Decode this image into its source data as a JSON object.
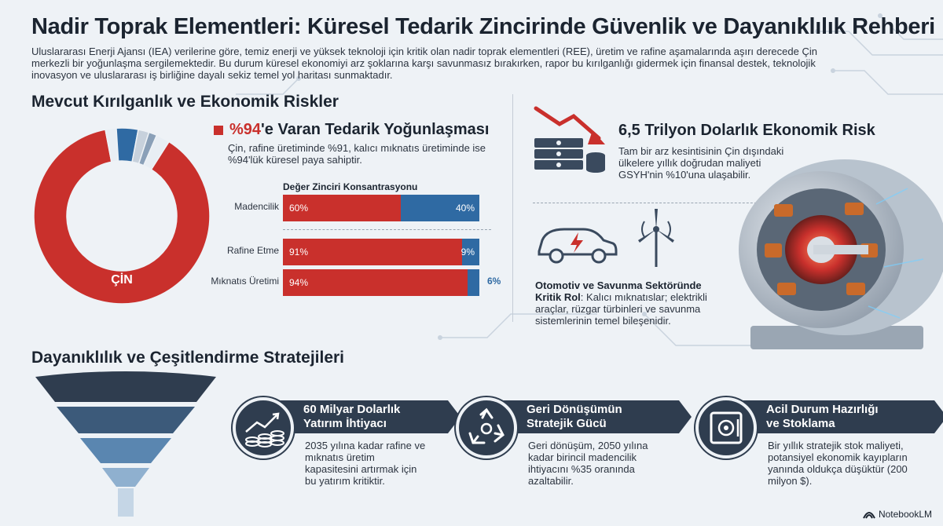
{
  "title": "Nadir Toprak Elementleri: Küresel Tedarik Zincirinde Güvenlik ve Dayanıklılık Rehberi",
  "intro": "Uluslararası Enerji Ajansı (IEA) verilerine göre, temiz enerji ve yüksek teknoloji için kritik olan nadir toprak elementleri (REE), üretim ve rafine aşamalarında aşırı derecede Çin merkezli bir yoğunlaşma sergilemektedir. Bu durum küresel ekonomiyi arz şoklarına karşı savunmasız bırakırken, rapor bu kırılganlığı gidermek için finansal destek, teknolojik inovasyon ve uluslararası iş birliğine dayalı sekiz temel yol haritası sunmaktadır.",
  "risks_section": {
    "title": "Mevcut Kırılganlık ve Ekonomik Riskler",
    "donut": {
      "label": "ÇİN",
      "china_share": 0.88,
      "others": [
        {
          "share": 0.02,
          "color": "#e8eef4"
        },
        {
          "share": 0.04,
          "color": "#2f6aa3"
        },
        {
          "share": 0.02,
          "color": "#c7d1dc"
        },
        {
          "share": 0.015,
          "color": "#8aa0b8"
        },
        {
          "share": 0.025,
          "color": "#e8eef4"
        }
      ],
      "colors": {
        "china": "#c9302c"
      }
    },
    "concentration": {
      "highlight": "%94",
      "title_rest": "'e Varan Tedarik Yoğunlaşması",
      "desc": "Çin, rafine üretiminde %91, kalıcı mıknatıs üretiminde ise %94'lük küresel paya sahiptir."
    },
    "value_chain": {
      "title": "Değer Zinciri Konsantrasyonu",
      "rows": [
        {
          "label": "Madencilik",
          "china": 60,
          "other": 40,
          "china_label": "60%",
          "other_label": "40%"
        },
        {
          "label": "Rafine Etme",
          "china": 91,
          "other": 9,
          "china_label": "91%",
          "other_label": "9%"
        },
        {
          "label": "Mıknatıs Üretimi",
          "china": 94,
          "other": 6,
          "china_label": "94%",
          "other_label": "6%"
        }
      ]
    },
    "economic_risk": {
      "title": "6,5 Trilyon Dolarlık Ekonomik Risk",
      "desc": "Tam bir arz kesintisinin Çin dışındaki ülkelere yıllık doğrudan maliyeti GSYH'nin %10'una ulaşabilir."
    },
    "auto_defense": {
      "bold": "Otomotiv ve Savunma Sektöründe Kritik Rol",
      "rest": ": Kalıcı mıknatıslar; elektrikli araçlar, rüzgar türbinleri ve savunma sistemlerinin temel bileşenidir."
    }
  },
  "strategies_section": {
    "title": "Dayanıklılık ve Çeşitlendirme Stratejileri",
    "items": [
      {
        "title_line1": "60 Milyar Dolarlık",
        "title_line2": "Yatırım İhtiyacı",
        "desc": "2035 yılına kadar rafine ve mıknatıs üretim kapasitesini artırmak için bu yatırım kritiktir.",
        "icon": "coins-growth-icon"
      },
      {
        "title_line1": "Geri Dönüşümün",
        "title_line2": "Stratejik Gücü",
        "desc": "Geri dönüşüm, 2050 yılına kadar birincil madencilik ihtiyacını %35 oranında azaltabilir.",
        "icon": "recycle-icon"
      },
      {
        "title_line1": "Acil Durum Hazırlığı",
        "title_line2": "ve Stoklama",
        "desc": "Bir yıllık stratejik stok maliyeti, potansiyel ekonomik kayıpların yanında oldukça düşüktür (200 milyon $).",
        "icon": "safe-icon"
      }
    ]
  },
  "footer": {
    "brand": "NotebookLM"
  },
  "colors": {
    "accent_red": "#c9302c",
    "accent_blue": "#2f6aa3",
    "navy": "#2f3d4f"
  }
}
